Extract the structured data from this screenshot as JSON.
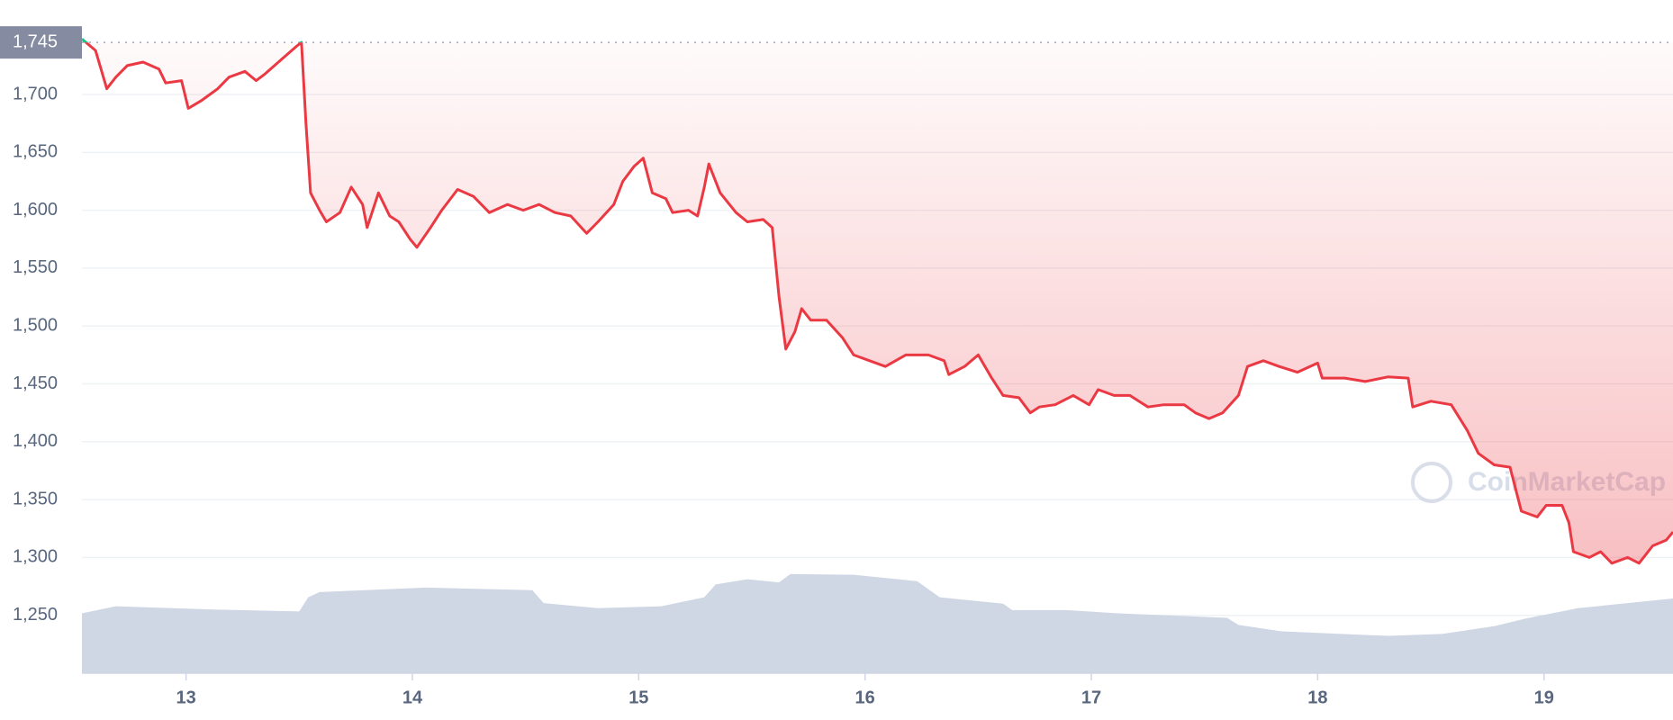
{
  "chart_data": {
    "type": "line",
    "x": [
      12.54,
      12.6,
      12.65,
      12.69,
      12.74,
      12.81,
      12.88,
      12.91,
      12.98,
      13.01,
      13.07,
      13.14,
      13.19,
      13.26,
      13.31,
      13.35,
      13.42,
      13.49,
      13.51,
      13.53,
      13.55,
      13.59,
      13.62,
      13.68,
      13.73,
      13.78,
      13.8,
      13.85,
      13.9,
      13.94,
      13.99,
      14.02,
      14.08,
      14.13,
      14.2,
      14.27,
      14.34,
      14.42,
      14.49,
      14.56,
      14.63,
      14.7,
      14.77,
      14.82,
      14.89,
      14.93,
      14.98,
      15.02,
      15.06,
      15.12,
      15.15,
      15.22,
      15.26,
      15.29,
      15.31,
      15.36,
      15.43,
      15.48,
      15.55,
      15.59,
      15.62,
      15.65,
      15.69,
      15.72,
      15.76,
      15.83,
      15.9,
      15.95,
      16.02,
      16.09,
      16.18,
      16.28,
      16.35,
      16.37,
      16.44,
      16.5,
      16.56,
      16.61,
      16.68,
      16.73,
      16.77,
      16.84,
      16.92,
      16.99,
      17.03,
      17.1,
      17.17,
      17.25,
      17.32,
      17.41,
      17.46,
      17.52,
      17.58,
      17.65,
      17.69,
      17.76,
      17.83,
      17.91,
      18.0,
      18.02,
      18.12,
      18.21,
      18.31,
      18.4,
      18.42,
      18.5,
      18.59,
      18.66,
      18.71,
      18.78,
      18.85,
      18.9,
      18.97,
      19.01,
      19.08,
      19.11,
      19.13,
      19.2,
      19.25,
      19.3,
      19.37,
      19.42,
      19.48,
      19.54,
      19.57
    ],
    "series": [
      {
        "color": "#ea3943",
        "above_color": "#16c784",
        "values": [
          1748,
          1738,
          1705,
          1715,
          1725,
          1728,
          1722,
          1710,
          1712,
          1688,
          1695,
          1705,
          1715,
          1720,
          1712,
          1718,
          1730,
          1742,
          1745,
          1675,
          1615,
          1600,
          1590,
          1598,
          1620,
          1605,
          1585,
          1615,
          1595,
          1590,
          1575,
          1568,
          1585,
          1600,
          1618,
          1612,
          1598,
          1605,
          1600,
          1605,
          1598,
          1595,
          1580,
          1590,
          1605,
          1625,
          1638,
          1645,
          1615,
          1610,
          1598,
          1600,
          1595,
          1620,
          1640,
          1615,
          1598,
          1590,
          1592,
          1585,
          1525,
          1480,
          1495,
          1515,
          1505,
          1505,
          1490,
          1475,
          1470,
          1465,
          1475,
          1475,
          1470,
          1458,
          1465,
          1475,
          1455,
          1440,
          1438,
          1425,
          1430,
          1432,
          1440,
          1432,
          1445,
          1440,
          1440,
          1430,
          1432,
          1432,
          1425,
          1420,
          1425,
          1440,
          1465,
          1470,
          1465,
          1460,
          1468,
          1455,
          1455,
          1452,
          1456,
          1455,
          1430,
          1435,
          1432,
          1410,
          1390,
          1380,
          1378,
          1340,
          1335,
          1345,
          1345,
          1330,
          1305,
          1300,
          1305,
          1295,
          1300,
          1295,
          1310,
          1315,
          1322
        ]
      },
      {
        "axis": "y2",
        "color": "#cfd6e4",
        "x": [
          12.54,
          12.69,
          13.12,
          13.5,
          13.54,
          13.59,
          14.06,
          14.53,
          14.58,
          14.82,
          15.1,
          15.29,
          15.34,
          15.48,
          15.62,
          15.67,
          15.95,
          16.23,
          16.33,
          16.61,
          16.65,
          16.89,
          17.12,
          17.6,
          17.65,
          17.84,
          18.31,
          18.55,
          18.78,
          18.92,
          19.15,
          19.57
        ],
        "values": [
          9.3,
          10.4,
          9.9,
          9.6,
          11.8,
          12.6,
          13.3,
          12.9,
          10.9,
          10.1,
          10.4,
          11.8,
          13.8,
          14.6,
          14.1,
          15.4,
          15.3,
          14.3,
          11.8,
          10.8,
          9.8,
          9.8,
          9.3,
          8.6,
          7.5,
          6.5,
          5.8,
          6.1,
          7.3,
          8.5,
          10.1,
          11.6
        ]
      }
    ],
    "reference_line": {
      "value": 1745,
      "label": "1,745"
    },
    "xlim": [
      12.54,
      19.57
    ],
    "xticks": [
      13,
      14,
      15,
      16,
      17,
      18,
      19
    ],
    "ylim": [
      1200,
      1756
    ],
    "yticks": [
      {
        "value": 1250,
        "label": "1,250"
      },
      {
        "value": 1300,
        "label": "1,300"
      },
      {
        "value": 1350,
        "label": "1,350"
      },
      {
        "value": 1400,
        "label": "1,400"
      },
      {
        "value": 1450,
        "label": "1,450"
      },
      {
        "value": 1500,
        "label": "1,500"
      },
      {
        "value": 1550,
        "label": "1,550"
      },
      {
        "value": 1600,
        "label": "1,600"
      },
      {
        "value": 1650,
        "label": "1,650"
      },
      {
        "value": 1700,
        "label": "1,700"
      }
    ],
    "y2lim": [
      0,
      100
    ],
    "grid": true,
    "watermark": "CoinMarketCap"
  }
}
